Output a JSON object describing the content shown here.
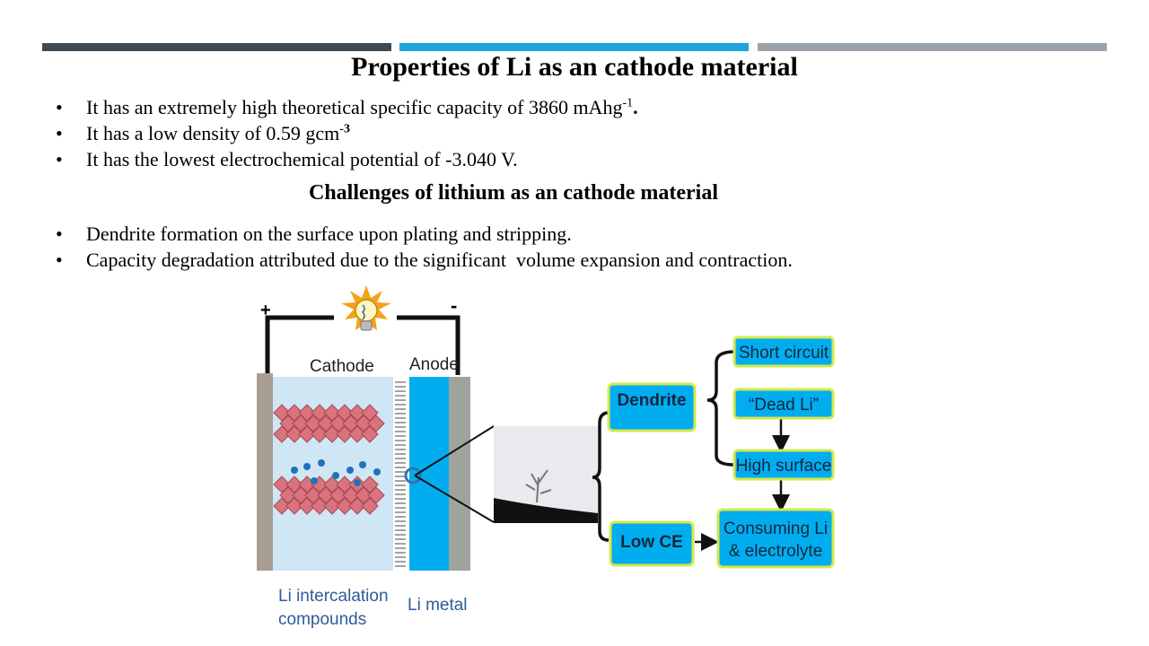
{
  "colors": {
    "bar1": "#414a51",
    "bar2": "#1aa6df",
    "bar3": "#9aa1a8"
  },
  "title": "Properties of Li as an cathode material",
  "properties": [
    {
      "text": "It has an extremely high theoretical specific capacity of 3860 mAhg",
      "sup": "-1",
      "after": "."
    },
    {
      "text": "It has a low density of 0.59 gcm",
      "sup": "-3",
      "after": ""
    },
    {
      "text": "It has the lowest electrochemical potential of -3.040 V.",
      "sup": "",
      "after": ""
    }
  ],
  "challenges_title": "Challenges of lithium as an cathode material",
  "challenges": [
    {
      "text": "Dendrite formation on the surface upon plating and stripping."
    },
    {
      "text": "Capacity degradation attributed due to the significant  volume expansion and contraction."
    }
  ],
  "figure": {
    "plus": "+",
    "minus": "-",
    "cathode": "Cathode",
    "anode": "Anode",
    "li_intercalation_1": "Li intercalation",
    "li_intercalation_2": "compounds",
    "li_metal": "Li metal",
    "dendrite": "Dendrite",
    "low_ce": "Low CE",
    "short_circuit": "Short circuit",
    "dead_li": "“Dead Li”",
    "high_surface": "High surface",
    "consuming_1": "Consuming Li",
    "consuming_2": "& electrolyte"
  }
}
